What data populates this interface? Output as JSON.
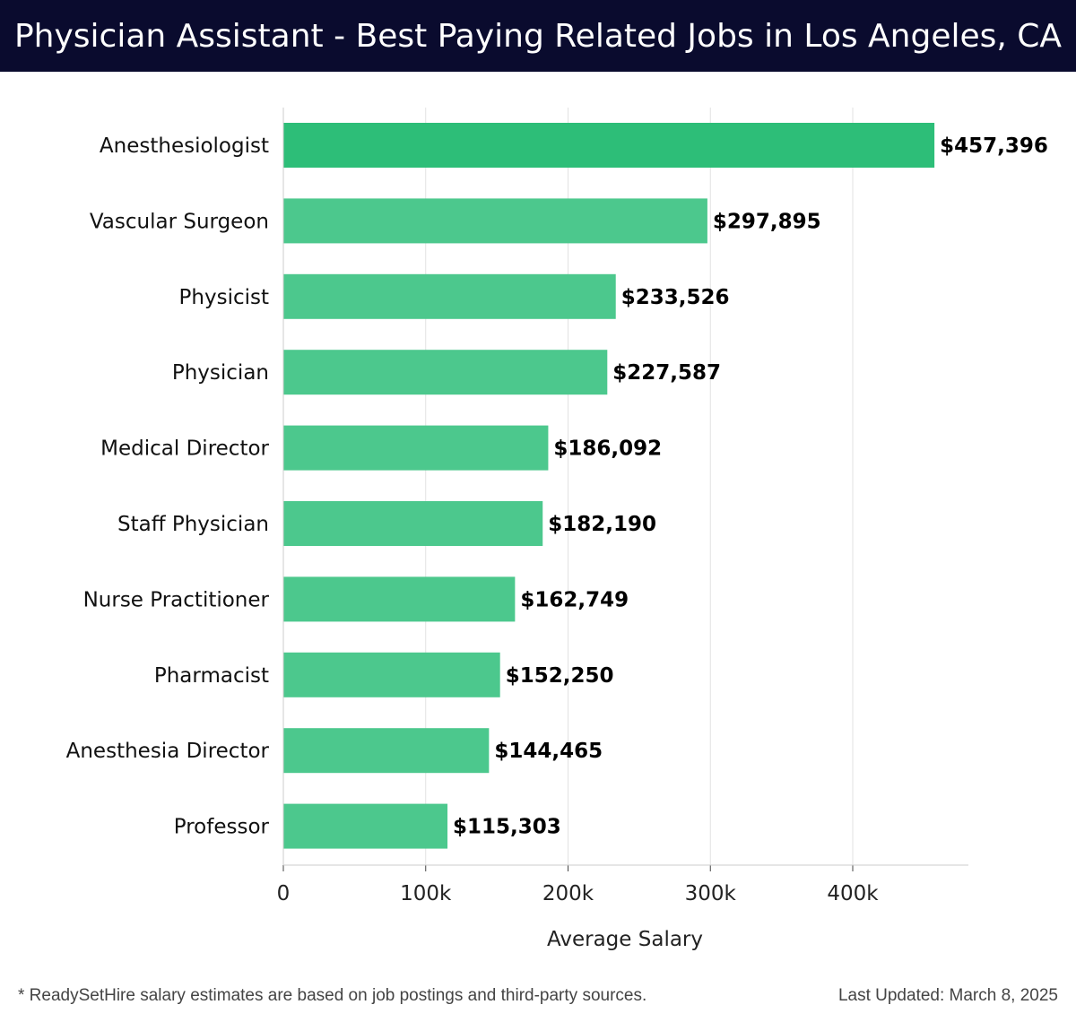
{
  "header": {
    "title": "Physician Assistant - Best Paying Related Jobs in Los Angeles, CA"
  },
  "footer": {
    "note": "* ReadySetHire salary estimates are based on job postings and third-party sources.",
    "updated": "Last Updated: March 8, 2025"
  },
  "colors": {
    "header_bg": "#0a0b2e",
    "bar_top": "#2dbe78",
    "bar": "#4cc88d",
    "grid": "#e2e2e2"
  },
  "chart_data": {
    "type": "bar",
    "orientation": "horizontal",
    "title": "Physician Assistant - Best Paying Related Jobs in Los Angeles, CA",
    "xlabel": "Average Salary",
    "ylabel": "",
    "xlim": [
      0,
      480000
    ],
    "grid": true,
    "categories": [
      "Anesthesiologist",
      "Vascular Surgeon",
      "Physicist",
      "Physician",
      "Medical Director",
      "Staff Physician",
      "Nurse Practitioner",
      "Pharmacist",
      "Anesthesia Director",
      "Professor"
    ],
    "values": [
      457396,
      297895,
      233526,
      227587,
      186092,
      182190,
      162749,
      152250,
      144465,
      115303
    ],
    "value_labels": [
      "$457,396",
      "$297,895",
      "$233,526",
      "$227,587",
      "$186,092",
      "$182,190",
      "$162,749",
      "$152,250",
      "$144,465",
      "$115,303"
    ],
    "ticks": [
      0,
      100000,
      200000,
      300000,
      400000
    ],
    "tick_labels": [
      "0",
      "100k",
      "200k",
      "300k",
      "400k"
    ]
  }
}
